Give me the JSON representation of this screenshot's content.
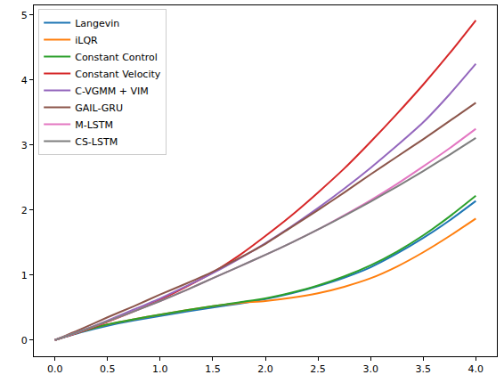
{
  "chart_data": {
    "type": "line",
    "x": [
      0,
      0.25,
      0.5,
      0.75,
      1.0,
      1.25,
      1.5,
      1.75,
      2.0,
      2.25,
      2.5,
      2.75,
      3.0,
      3.25,
      3.5,
      3.75,
      4.0
    ],
    "series": [
      {
        "name": "Langevin",
        "color": "#1f77b4",
        "values": [
          0,
          0.12,
          0.22,
          0.3,
          0.37,
          0.44,
          0.5,
          0.56,
          0.63,
          0.72,
          0.83,
          0.96,
          1.12,
          1.33,
          1.57,
          1.84,
          2.14
        ]
      },
      {
        "name": "iLQR",
        "color": "#ff7f0e",
        "values": [
          0,
          0.13,
          0.24,
          0.32,
          0.39,
          0.46,
          0.52,
          0.57,
          0.6,
          0.65,
          0.72,
          0.82,
          0.95,
          1.13,
          1.35,
          1.6,
          1.87
        ]
      },
      {
        "name": "Constant Control",
        "color": "#2ca02c",
        "values": [
          0,
          0.13,
          0.24,
          0.32,
          0.39,
          0.46,
          0.52,
          0.58,
          0.64,
          0.73,
          0.84,
          0.98,
          1.15,
          1.36,
          1.61,
          1.9,
          2.22
        ]
      },
      {
        "name": "Constant Velocity",
        "color": "#d62728",
        "values": [
          0,
          0.13,
          0.28,
          0.44,
          0.62,
          0.82,
          1.04,
          1.3,
          1.6,
          1.92,
          2.27,
          2.64,
          3.05,
          3.48,
          3.93,
          4.41,
          4.92
        ]
      },
      {
        "name": "C-VGMM + VIM",
        "color": "#9467bd",
        "values": [
          0,
          0.14,
          0.3,
          0.47,
          0.64,
          0.83,
          1.03,
          1.25,
          1.49,
          1.75,
          2.03,
          2.33,
          2.65,
          2.99,
          3.35,
          3.78,
          4.25
        ]
      },
      {
        "name": "GAIL-GRU",
        "color": "#8c564b",
        "values": [
          0,
          0.17,
          0.35,
          0.52,
          0.7,
          0.87,
          1.05,
          1.26,
          1.48,
          1.74,
          2.0,
          2.27,
          2.55,
          2.82,
          3.09,
          3.37,
          3.65
        ]
      },
      {
        "name": "M-LSTM",
        "color": "#e377c2",
        "values": [
          0,
          0.14,
          0.29,
          0.44,
          0.6,
          0.77,
          0.95,
          1.13,
          1.31,
          1.5,
          1.7,
          1.92,
          2.15,
          2.4,
          2.67,
          2.95,
          3.25
        ]
      },
      {
        "name": "CS-LSTM",
        "color": "#7f7f7f",
        "values": [
          0,
          0.14,
          0.29,
          0.44,
          0.6,
          0.77,
          0.95,
          1.13,
          1.31,
          1.5,
          1.7,
          1.91,
          2.13,
          2.36,
          2.6,
          2.85,
          3.11
        ]
      }
    ],
    "xlim": [
      -0.2,
      4.2
    ],
    "ylim": [
      -0.25,
      5.15
    ],
    "xticks": [
      {
        "value": 0,
        "label": "0.0"
      },
      {
        "value": 0.5,
        "label": "0.5"
      },
      {
        "value": 1,
        "label": "1.0"
      },
      {
        "value": 1.5,
        "label": "1.5"
      },
      {
        "value": 2,
        "label": "2.0"
      },
      {
        "value": 2.5,
        "label": "2.5"
      },
      {
        "value": 3,
        "label": "3.0"
      },
      {
        "value": 3.5,
        "label": "3.5"
      },
      {
        "value": 4,
        "label": "4.0"
      }
    ],
    "yticks": [
      0,
      1,
      2,
      3,
      4,
      5
    ],
    "grid": false,
    "legend": "upper left"
  }
}
